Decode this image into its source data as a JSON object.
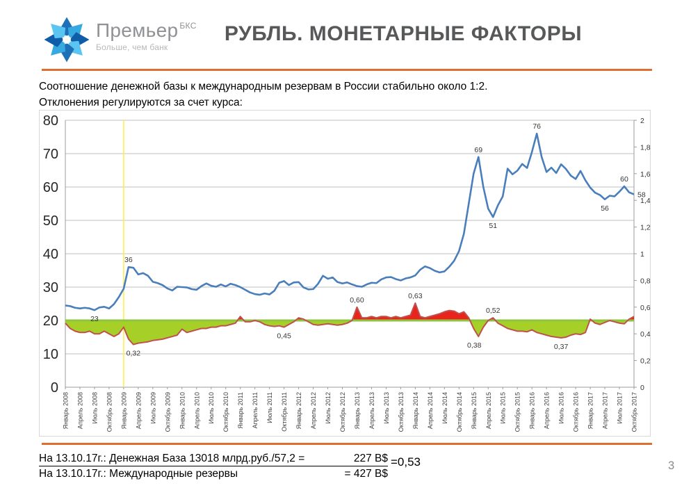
{
  "header": {
    "brand": "Премьер",
    "brand_sup": "БКС",
    "tagline": "Больше, чем банк",
    "title": "РУБЛЬ. МОНЕТАРНЫЕ ФАКТОРЫ"
  },
  "subtitle": {
    "line1": "Соотношение денежной базы к международным резервам в России стабильно около 1:2.",
    "line2": "Отклонения регулируются за счет курса:"
  },
  "footer": {
    "line1_label": "На 13.10.17г.: Денежная База 13018 млрд.руб./57,2 =",
    "line1_value": "227 B$",
    "line2_label": "На 13.10.17г.: Международные резервы",
    "line2_value": "=  427 B$",
    "ratio": "=0,53"
  },
  "page_number": "3",
  "colors": {
    "accent_orange": "#dd7030",
    "title_gray": "#57585a",
    "blue_line": "#4a7ebb",
    "red_line": "#c0504d",
    "green_ref_line": "#8cc63f",
    "green_fill": "#a6d027",
    "red_fill": "#e8251d",
    "yellow_event_line": "#fdee55"
  },
  "chart_data": {
    "type": "line",
    "title": "",
    "x_labels": [
      "Январь 2008",
      "Апрель 2008",
      "Июль 2008",
      "Октябрь 2008",
      "Январь 2009",
      "Апрель 2009",
      "Июль 2009",
      "Октябрь 2009",
      "Январь 2010",
      "Апрель 2010",
      "Июль 2010",
      "Октябрь 2010",
      "Январь 2011",
      "Апрель 2011",
      "Июль 2011",
      "Октябрь 2011",
      "Январь 2012",
      "Апрель 2012",
      "Июль 2012",
      "Октябрь 2012",
      "Январь 2013",
      "Апрель 2013",
      "Июль 2013",
      "Октябрь 2013",
      "Январь 2014",
      "Апрель 2014",
      "Июль 2014",
      "Октябрь 2014",
      "Январь 2015",
      "Апрель 2015",
      "Июль 2015",
      "Октябрь 2015",
      "Январь 2016",
      "Апрель 2016",
      "Июль 2016",
      "Октябрь 2016",
      "Январь 2017",
      "Апрель 2017",
      "Июль 2017",
      "Октябрь 2017"
    ],
    "months_per_label": 3,
    "left_axis": {
      "min": 0,
      "max": 80,
      "step": 10,
      "labels": [
        "80",
        "70",
        "60",
        "50",
        "40",
        "30",
        "20",
        "10",
        "0"
      ]
    },
    "right_axis": {
      "min": 0,
      "max": 2,
      "step": 0.2,
      "labels": [
        "2",
        "1,8",
        "1,6",
        "1,4",
        "1,2",
        "1",
        "0,8",
        "0,6",
        "0,4",
        "0,2",
        "0"
      ]
    },
    "reference_line": {
      "axis": "right",
      "value": 0.5,
      "color": "#8cc63f"
    },
    "event_line": {
      "month_index": 12,
      "color": "#fdee55"
    },
    "series": [
      {
        "id": "blue-line",
        "axis": "left",
        "color": "#4a7ebb",
        "values": [
          24.5,
          24.3,
          23.8,
          23.6,
          23.8,
          23.6,
          23.1,
          23.9,
          24.1,
          23.6,
          24.9,
          27.0,
          29.5,
          36.0,
          35.8,
          33.8,
          34.2,
          33.4,
          31.6,
          31.2,
          30.6,
          29.6,
          29.0,
          30.1,
          30.0,
          29.9,
          29.4,
          29.2,
          30.3,
          31.1,
          30.4,
          30.1,
          30.8,
          30.2,
          31.0,
          30.6,
          30.0,
          29.2,
          28.4,
          27.9,
          27.7,
          28.1,
          27.8,
          28.9,
          31.3,
          31.8,
          30.6,
          31.4,
          31.5,
          29.9,
          29.3,
          29.4,
          31.0,
          33.4,
          32.5,
          32.9,
          31.5,
          31.1,
          31.4,
          30.8,
          30.3,
          30.1,
          30.8,
          31.3,
          31.2,
          32.3,
          32.9,
          33.0,
          32.4,
          32.0,
          32.6,
          32.9,
          33.5,
          35.2,
          36.2,
          35.7,
          34.9,
          34.4,
          34.7,
          36.1,
          37.9,
          40.8,
          46.0,
          55.0,
          64.0,
          69.0,
          60.0,
          53.5,
          51.0,
          54.5,
          57.2,
          65.5,
          63.8,
          64.9,
          66.9,
          65.7,
          70.5,
          76.0,
          69.0,
          64.5,
          65.8,
          64.2,
          66.8,
          65.4,
          63.4,
          62.4,
          64.8,
          62.0,
          59.8,
          58.3,
          57.6,
          56.3,
          57.4,
          57.2,
          58.6,
          60.2,
          58.4,
          57.8
        ]
      },
      {
        "id": "red-line",
        "axis": "right",
        "color": "#c0504d",
        "fill_below_ref": "#a6d027",
        "fill_above_ref": "#e8251d",
        "values": [
          0.48,
          0.44,
          0.42,
          0.41,
          0.41,
          0.42,
          0.4,
          0.4,
          0.42,
          0.4,
          0.38,
          0.4,
          0.45,
          0.36,
          0.32,
          0.33,
          0.335,
          0.34,
          0.35,
          0.355,
          0.36,
          0.37,
          0.38,
          0.39,
          0.435,
          0.41,
          0.42,
          0.43,
          0.44,
          0.44,
          0.45,
          0.45,
          0.46,
          0.46,
          0.47,
          0.48,
          0.53,
          0.49,
          0.49,
          0.5,
          0.49,
          0.47,
          0.46,
          0.455,
          0.46,
          0.45,
          0.47,
          0.49,
          0.52,
          0.51,
          0.49,
          0.47,
          0.465,
          0.47,
          0.475,
          0.47,
          0.465,
          0.47,
          0.48,
          0.5,
          0.6,
          0.52,
          0.52,
          0.53,
          0.52,
          0.53,
          0.53,
          0.52,
          0.53,
          0.52,
          0.53,
          0.54,
          0.63,
          0.53,
          0.52,
          0.53,
          0.54,
          0.55,
          0.565,
          0.575,
          0.57,
          0.55,
          0.565,
          0.52,
          0.44,
          0.38,
          0.45,
          0.5,
          0.52,
          0.48,
          0.46,
          0.44,
          0.43,
          0.42,
          0.42,
          0.415,
          0.43,
          0.41,
          0.4,
          0.39,
          0.38,
          0.375,
          0.37,
          0.375,
          0.39,
          0.4,
          0.395,
          0.41,
          0.51,
          0.48,
          0.47,
          0.485,
          0.5,
          0.49,
          0.48,
          0.475,
          0.51,
          0.53
        ]
      }
    ],
    "point_labels": [
      {
        "series": 0,
        "index": 6,
        "text": "23",
        "pos": "below"
      },
      {
        "series": 0,
        "index": 13,
        "text": "36",
        "pos": "above"
      },
      {
        "series": 0,
        "index": 85,
        "text": "69",
        "pos": "above"
      },
      {
        "series": 0,
        "index": 88,
        "text": "51",
        "pos": "below"
      },
      {
        "series": 0,
        "index": 97,
        "text": "76",
        "pos": "above"
      },
      {
        "series": 0,
        "index": 111,
        "text": "56",
        "pos": "below"
      },
      {
        "series": 0,
        "index": 115,
        "text": "60",
        "pos": "above"
      },
      {
        "series": 0,
        "index": 117,
        "text": "58",
        "pos": "end"
      },
      {
        "series": 1,
        "index": 14,
        "text": "0,32",
        "pos": "below"
      },
      {
        "series": 1,
        "index": 45,
        "text": "0,45",
        "pos": "below"
      },
      {
        "series": 1,
        "index": 60,
        "text": "0,60",
        "pos": "above"
      },
      {
        "series": 1,
        "index": 72,
        "text": "0,63",
        "pos": "above"
      },
      {
        "series": 1,
        "index": 85,
        "text": "0,38",
        "pos": "below",
        "dx": -6
      },
      {
        "series": 1,
        "index": 88,
        "text": "0,52",
        "pos": "above"
      },
      {
        "series": 1,
        "index": 102,
        "text": "0,37",
        "pos": "below"
      }
    ]
  }
}
